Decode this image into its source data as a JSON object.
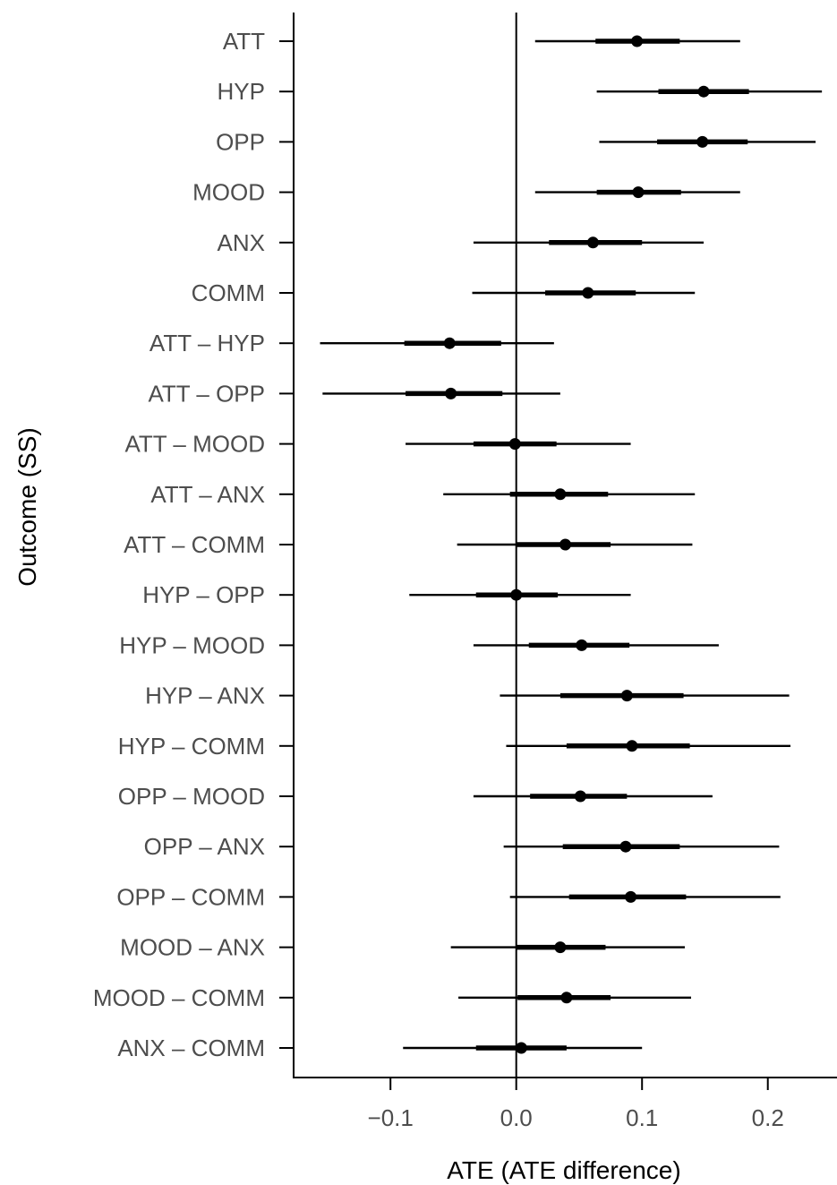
{
  "chart_data": {
    "type": "forest",
    "xlabel": "ATE (ATE difference)",
    "ylabel": "Outcome (SS)",
    "xlim": [
      -0.177,
      0.255
    ],
    "xticks": [
      -0.1,
      0.0,
      0.1,
      0.2
    ],
    "xtick_labels": [
      "−0.1",
      "0.0",
      "0.1",
      "0.2"
    ],
    "reference_line_x": 0,
    "grid": false,
    "categories": [
      "ATT",
      "HYP",
      "OPP",
      "MOOD",
      "ANX",
      "COMM",
      "ATT – HYP",
      "ATT – OPP",
      "ATT – MOOD",
      "ATT – ANX",
      "ATT – COMM",
      "HYP – OPP",
      "HYP – MOOD",
      "HYP – ANX",
      "HYP – COMM",
      "OPP – MOOD",
      "OPP – ANX",
      "OPP – COMM",
      "MOOD – ANX",
      "MOOD – COMM",
      "ANX – COMM"
    ],
    "estimates": [
      0.096,
      0.149,
      0.148,
      0.097,
      0.061,
      0.057,
      -0.053,
      -0.052,
      -0.001,
      0.035,
      0.039,
      0.0,
      0.052,
      0.088,
      0.092,
      0.051,
      0.087,
      0.091,
      0.035,
      0.04,
      0.004
    ],
    "inner_lower": [
      0.063,
      0.113,
      0.112,
      0.064,
      0.026,
      0.023,
      -0.089,
      -0.088,
      -0.034,
      -0.005,
      0.0,
      -0.032,
      0.01,
      0.035,
      0.04,
      0.011,
      0.037,
      0.042,
      0.0,
      0.001,
      -0.032
    ],
    "inner_upper": [
      0.13,
      0.185,
      0.184,
      0.131,
      0.1,
      0.095,
      -0.012,
      -0.011,
      0.032,
      0.073,
      0.075,
      0.033,
      0.09,
      0.133,
      0.138,
      0.088,
      0.13,
      0.135,
      0.071,
      0.075,
      0.04
    ],
    "outer_lower": [
      0.015,
      0.064,
      0.066,
      0.015,
      -0.034,
      -0.035,
      -0.156,
      -0.154,
      -0.088,
      -0.058,
      -0.047,
      -0.085,
      -0.034,
      -0.013,
      -0.008,
      -0.034,
      -0.01,
      -0.005,
      -0.052,
      -0.046,
      -0.09
    ],
    "outer_upper": [
      0.178,
      0.243,
      0.238,
      0.178,
      0.149,
      0.142,
      0.03,
      0.035,
      0.091,
      0.142,
      0.14,
      0.091,
      0.161,
      0.217,
      0.218,
      0.156,
      0.209,
      0.21,
      0.134,
      0.139,
      0.1
    ]
  }
}
